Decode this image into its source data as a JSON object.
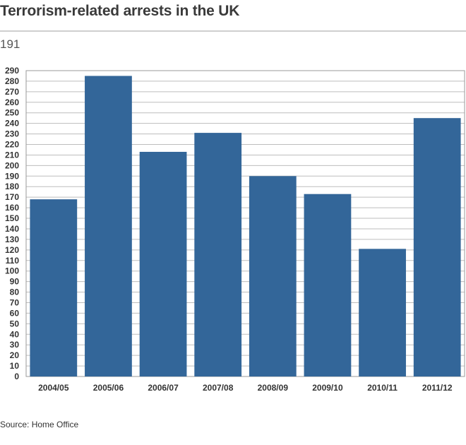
{
  "title": "Terrorism-related arrests in the UK",
  "subtitle": "191",
  "source": "Source: Home Office",
  "colors": {
    "bar": "#336699",
    "grid": "#bdbdbd",
    "frame": "#9a9a9a"
  },
  "chart_data": {
    "type": "bar",
    "title": "Terrorism-related arrests in the UK",
    "xlabel": "",
    "ylabel": "",
    "categories": [
      "2004/05",
      "2005/06",
      "2006/07",
      "2007/08",
      "2008/09",
      "2009/10",
      "2010/11",
      "2011/12"
    ],
    "values": [
      168,
      285,
      213,
      231,
      190,
      173,
      121,
      245
    ],
    "ylim": [
      0,
      290
    ],
    "ytick_step": 10,
    "grid": true
  }
}
